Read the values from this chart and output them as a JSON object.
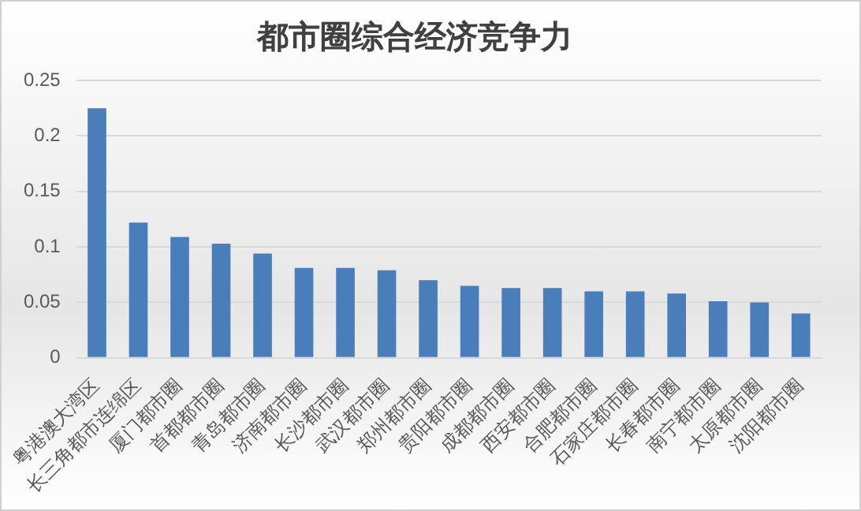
{
  "chart_data": {
    "type": "bar",
    "title": "都市圈综合经济竞争力",
    "categories": [
      "粤港澳大湾区",
      "长三角都市连绵区",
      "厦门都市圈",
      "首都都市圈",
      "青岛都市圈",
      "济南都市圈",
      "长沙都市圈",
      "武汉都市圈",
      "郑州都市圈",
      "贵阳都市圈",
      "成都都市圈",
      "西安都市圈",
      "合肥都市圈",
      "石家庄都市圈",
      "长春都市圈",
      "南宁都市圈",
      "太原都市圈",
      "沈阳都市圈"
    ],
    "values": [
      0.225,
      0.122,
      0.109,
      0.103,
      0.094,
      0.081,
      0.081,
      0.079,
      0.07,
      0.065,
      0.063,
      0.063,
      0.06,
      0.06,
      0.058,
      0.051,
      0.05,
      0.04
    ],
    "color": "#4a7ebb",
    "ylim": [
      0,
      0.25
    ],
    "yticks": [
      0,
      0.05,
      {
        "value": 0.1,
        "label": "0.1"
      },
      0.15,
      {
        "value": 0.2,
        "label": "0.2"
      },
      0.25
    ],
    "grid": "y"
  }
}
